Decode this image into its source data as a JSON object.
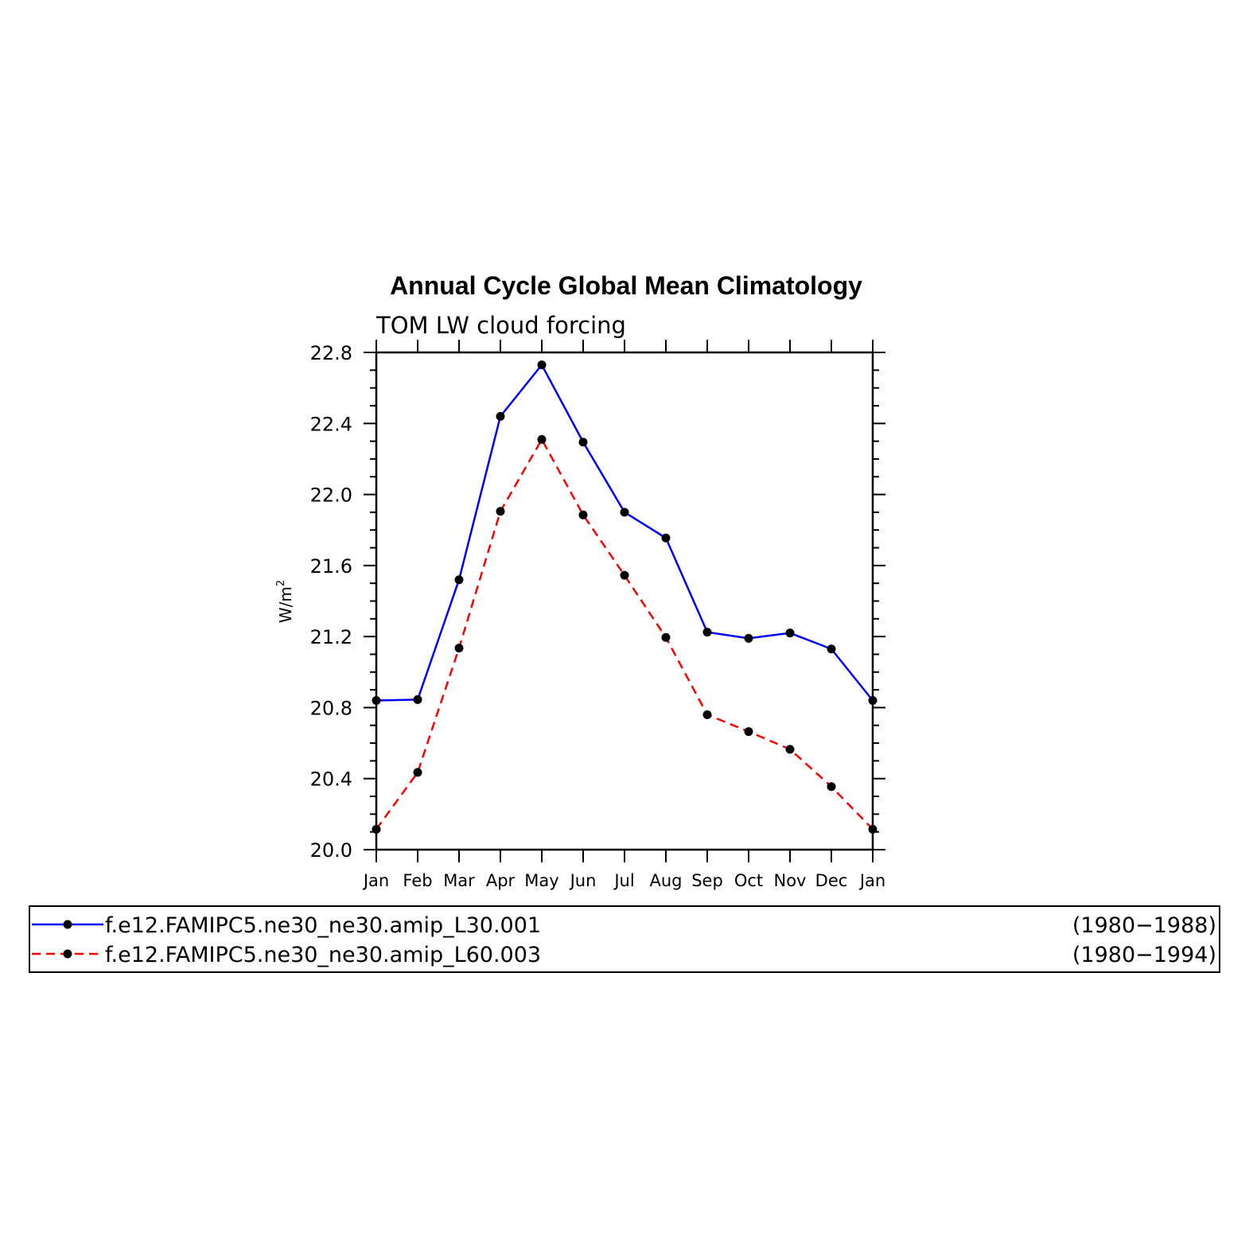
{
  "chart_data": {
    "type": "line",
    "title": "Annual Cycle Global Mean Climatology",
    "subtitle": "TOM LW cloud forcing",
    "ylabel": "W/m",
    "ylabel_superscript": "2",
    "xlabel": "",
    "ylim": [
      20.0,
      22.8
    ],
    "yticks": [
      "20.0",
      "20.4",
      "20.8",
      "21.2",
      "21.6",
      "22.0",
      "22.4",
      "22.8"
    ],
    "categories": [
      "Jan",
      "Feb",
      "Mar",
      "Apr",
      "May",
      "Jun",
      "Jul",
      "Aug",
      "Sep",
      "Oct",
      "Nov",
      "Dec",
      "Jan"
    ],
    "grid": false,
    "legend_position": "bottom",
    "series": [
      {
        "name": "f.e12.FAMIPC5.ne30_ne30.amip_L30.001",
        "period": "(1980−1988)",
        "color": "#0000ff",
        "dash": "solid",
        "values": [
          20.84,
          20.845,
          21.52,
          22.44,
          22.73,
          22.295,
          21.9,
          21.755,
          21.225,
          21.19,
          21.22,
          21.13,
          20.84
        ]
      },
      {
        "name": "f.e12.FAMIPC5.ne30_ne30.amip_L60.003",
        "period": "(1980−1994)",
        "color": "#ff0000",
        "dash": "dashed",
        "values": [
          20.115,
          20.435,
          21.135,
          21.905,
          22.31,
          21.885,
          21.545,
          21.195,
          20.76,
          20.665,
          20.565,
          20.355,
          20.115
        ]
      }
    ]
  }
}
